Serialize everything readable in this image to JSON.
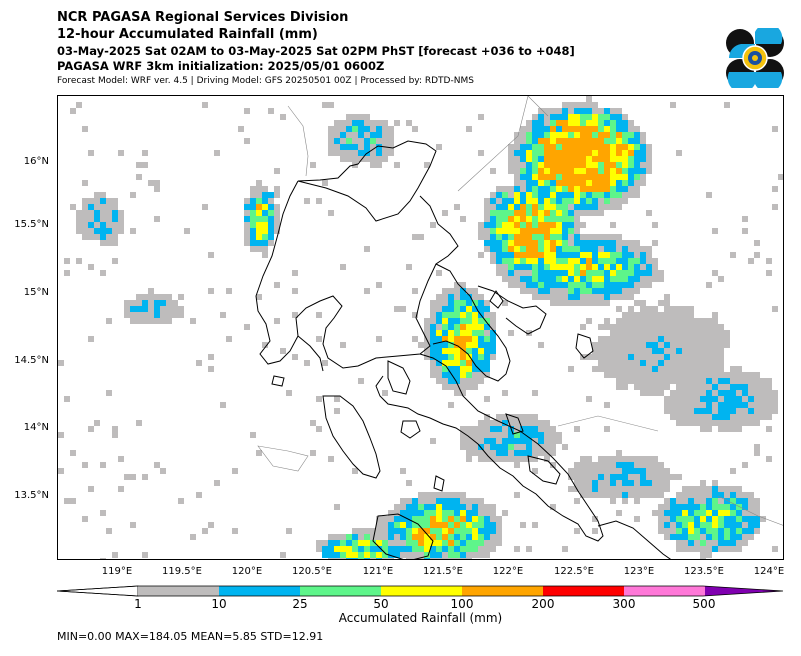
{
  "header": {
    "line1": "NCR PAGASA Regional Services Division",
    "line2": "12-hour Accumulated Rainfall (mm)",
    "line3": "03-May-2025 Sat 02AM to 03-May-2025 Sat 02PM PhST [forecast +036 to +048]",
    "line4": "PAGASA WRF 3km initialization: 2025/05/01 0600Z",
    "line5": "Forecast Model: WRF ver. 4.5 | Driving Model: GFS 20250501 00Z | Processed by: RDTD-NMS"
  },
  "map": {
    "lat_labels": [
      "16°N",
      "15.5°N",
      "15°N",
      "14.5°N",
      "14°N",
      "13.5°N"
    ],
    "lon_labels": [
      "119°E",
      "119.5°E",
      "120°E",
      "120.5°E",
      "121°E",
      "121.5°E",
      "122°E",
      "122.5°E",
      "123°E",
      "123.5°E",
      "124°E"
    ],
    "rain_colors": {
      "r1_10": "#bebcbc",
      "r10_25": "#00b4f0",
      "r25_50": "#5ef58a",
      "r50_100": "#ffff00",
      "r100_200": "#ffa500"
    }
  },
  "colorbar": {
    "ticks": [
      "1",
      "10",
      "25",
      "50",
      "100",
      "200",
      "300",
      "500"
    ],
    "colors": [
      "#ffffff",
      "#bebcbc",
      "#00b4f0",
      "#5ef58a",
      "#ffff00",
      "#ffa500",
      "#ff0000",
      "#ff78d8",
      "#8000b0"
    ],
    "label": "Accumulated Rainfall (mm)"
  },
  "stats": {
    "text": "MIN=0.00   MAX=184.05   MEAN=5.85   STD=12.91"
  }
}
